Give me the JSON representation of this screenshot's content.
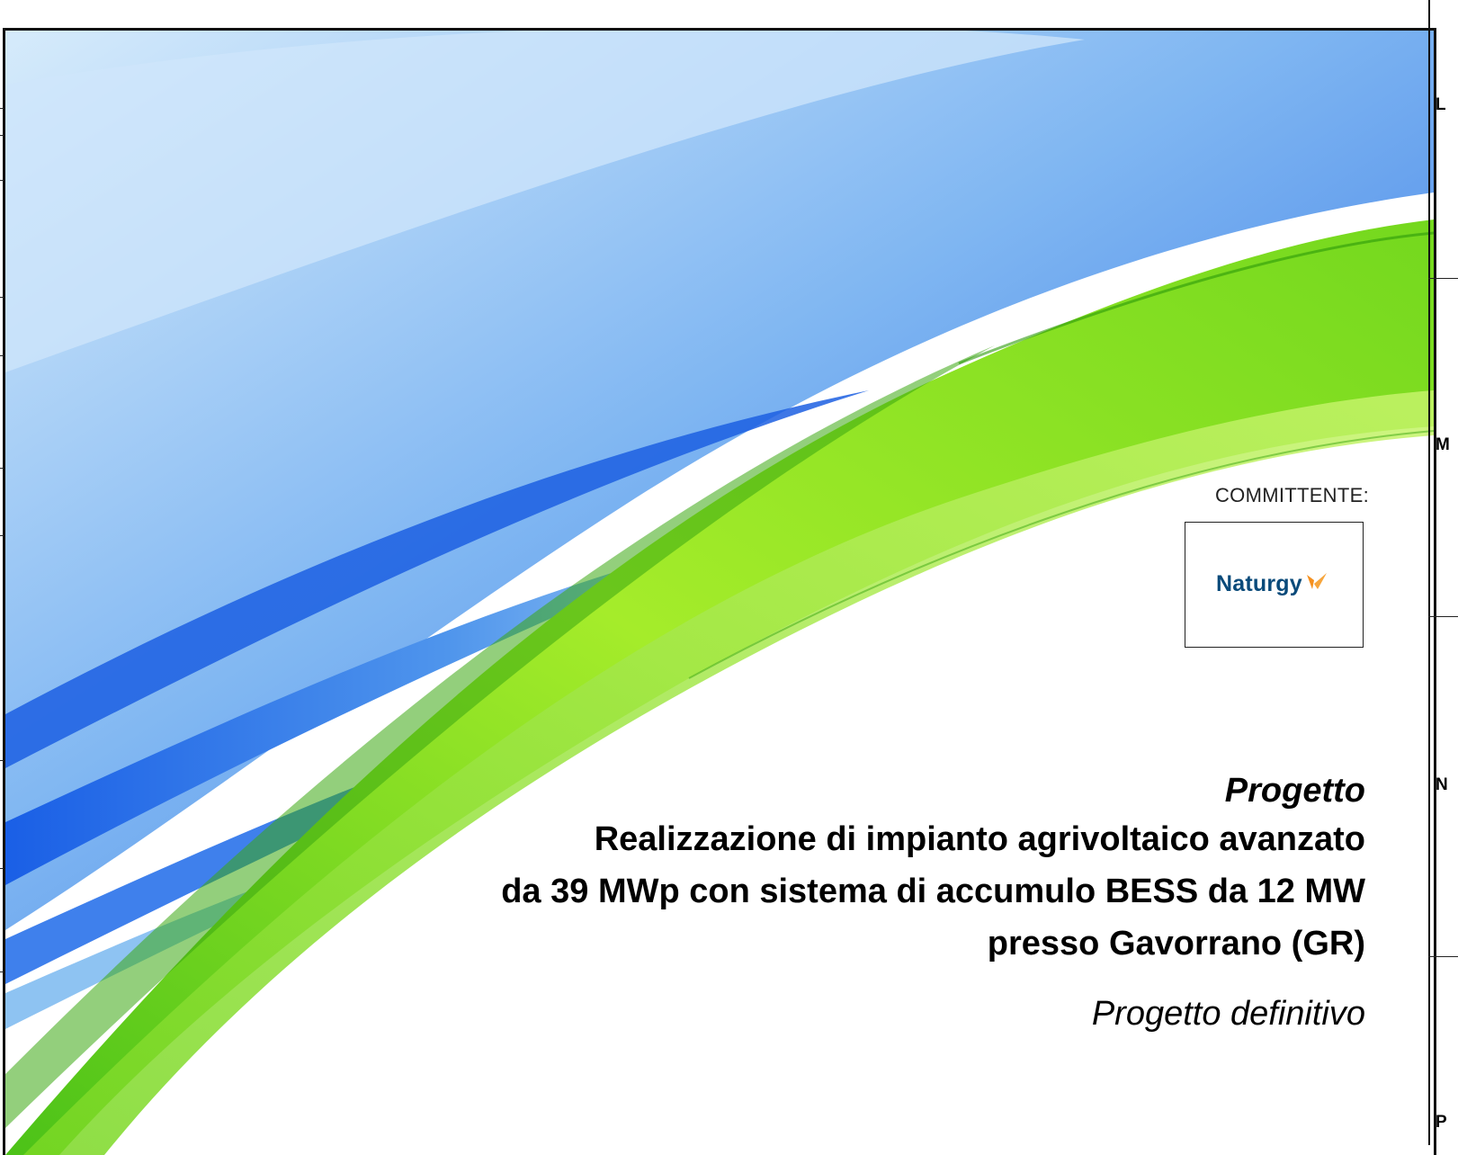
{
  "committente_label": "COMMITTENTE:",
  "client_logo": {
    "text": "Naturgy",
    "mark_icon": "butterfly-mark-icon",
    "color": "#0a4a7a",
    "accent": "#f5901e"
  },
  "title": {
    "kicker": "Progetto",
    "lines": [
      "Realizzazione di impianto agrivoltaico avanzato",
      "da 39 MWp con sistema di accumulo BESS da 12 MW",
      "presso Gavorrano (GR)"
    ]
  },
  "subtitle": "Progetto definitivo",
  "margin_zones": [
    "L",
    "M",
    "N",
    "P"
  ],
  "colors": {
    "blue": "#2f7de8",
    "light_blue": "#bcdcf8",
    "green": "#8fe22a",
    "dark_green": "#3fae10"
  }
}
